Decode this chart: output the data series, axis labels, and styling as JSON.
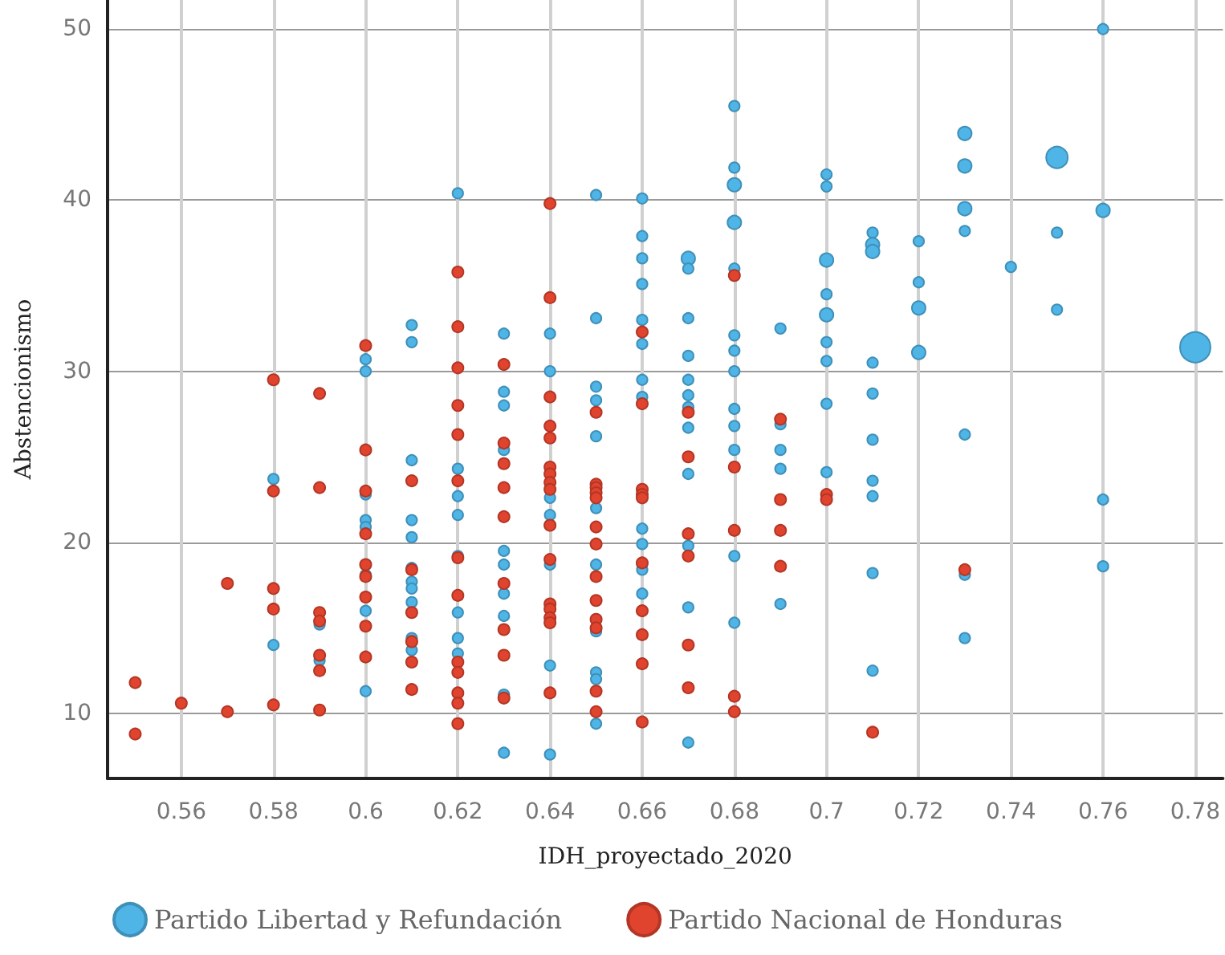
{
  "chart_data": {
    "type": "bubble",
    "xlabel": "IDH_proyectado_2020",
    "ylabel": "Abstencionismo",
    "xlim": [
      0.544,
      0.786
    ],
    "xticks": [
      0.56,
      0.58,
      0.6,
      0.62,
      0.64,
      0.66,
      0.68,
      0.7,
      0.72,
      0.74,
      0.76,
      0.78
    ],
    "ylim": [
      6.2,
      51.7
    ],
    "yticks": [
      10,
      20,
      30,
      40,
      50
    ],
    "grid": true,
    "legend": "bottom",
    "marker": "circle",
    "series": [
      {
        "name": "Partido Libertad y Refundación",
        "color": "#4fb4e6",
        "x": [
          0.58,
          0.58,
          0.59,
          0.59,
          0.6,
          0.6,
          0.6,
          0.6,
          0.6,
          0.6,
          0.6,
          0.6,
          0.61,
          0.61,
          0.61,
          0.61,
          0.61,
          0.61,
          0.61,
          0.61,
          0.61,
          0.61,
          0.61,
          0.62,
          0.62,
          0.62,
          0.62,
          0.62,
          0.62,
          0.62,
          0.62,
          0.63,
          0.63,
          0.63,
          0.63,
          0.63,
          0.63,
          0.63,
          0.63,
          0.63,
          0.63,
          0.64,
          0.64,
          0.64,
          0.64,
          0.64,
          0.64,
          0.64,
          0.64,
          0.65,
          0.65,
          0.65,
          0.65,
          0.65,
          0.65,
          0.65,
          0.65,
          0.65,
          0.65,
          0.65,
          0.66,
          0.66,
          0.66,
          0.66,
          0.66,
          0.66,
          0.66,
          0.66,
          0.66,
          0.66,
          0.66,
          0.66,
          0.67,
          0.67,
          0.67,
          0.67,
          0.67,
          0.67,
          0.67,
          0.67,
          0.67,
          0.67,
          0.67,
          0.67,
          0.68,
          0.68,
          0.68,
          0.68,
          0.68,
          0.68,
          0.68,
          0.68,
          0.68,
          0.68,
          0.68,
          0.68,
          0.68,
          0.69,
          0.69,
          0.69,
          0.69,
          0.69,
          0.7,
          0.7,
          0.7,
          0.7,
          0.7,
          0.7,
          0.7,
          0.7,
          0.7,
          0.71,
          0.71,
          0.71,
          0.71,
          0.71,
          0.71,
          0.71,
          0.71,
          0.71,
          0.71,
          0.72,
          0.72,
          0.72,
          0.72,
          0.73,
          0.73,
          0.73,
          0.73,
          0.73,
          0.73,
          0.73,
          0.74,
          0.75,
          0.75,
          0.75,
          0.76,
          0.76,
          0.76,
          0.76,
          0.78
        ],
        "values": [
          23.7,
          14.0,
          15.2,
          13.1,
          30.7,
          30.0,
          22.8,
          21.3,
          20.9,
          18.1,
          16.0,
          11.3,
          32.7,
          31.7,
          24.8,
          21.3,
          20.3,
          18.5,
          17.7,
          17.3,
          16.5,
          14.4,
          13.7,
          40.4,
          24.3,
          22.7,
          21.6,
          19.2,
          15.9,
          14.4,
          13.5,
          32.2,
          28.8,
          28.0,
          25.4,
          19.5,
          18.7,
          17.0,
          15.7,
          11.1,
          7.7,
          32.2,
          30.0,
          22.6,
          21.6,
          21.0,
          18.7,
          12.8,
          7.6,
          40.3,
          33.1,
          29.1,
          28.3,
          26.2,
          22.0,
          18.7,
          14.8,
          12.4,
          12.0,
          9.4,
          40.1,
          37.9,
          36.6,
          35.1,
          33.0,
          31.6,
          29.5,
          28.5,
          20.8,
          19.9,
          18.4,
          17.0,
          36.6,
          36.0,
          33.1,
          30.9,
          29.5,
          28.6,
          27.9,
          26.7,
          24.0,
          19.8,
          16.2,
          8.3,
          45.5,
          41.9,
          40.9,
          38.7,
          36.0,
          32.1,
          31.2,
          30.0,
          27.8,
          26.8,
          25.4,
          19.2,
          15.3,
          32.5,
          26.9,
          25.4,
          24.3,
          16.4,
          41.5,
          40.8,
          36.5,
          34.5,
          33.3,
          31.7,
          30.6,
          28.1,
          24.1,
          38.1,
          37.4,
          37.0,
          30.5,
          28.7,
          26.0,
          23.6,
          22.7,
          18.2,
          12.5,
          37.6,
          35.2,
          33.7,
          31.1,
          43.9,
          42.0,
          39.5,
          38.2,
          26.3,
          18.1,
          14.4,
          36.1,
          42.5,
          38.1,
          33.6,
          50.0,
          39.4,
          22.5,
          18.6,
          31.4
        ],
        "sizes": [
          0.12,
          0.12,
          0.12,
          0.12,
          0.12,
          0.12,
          0.12,
          0.12,
          0.12,
          0.12,
          0.12,
          0.12,
          0.12,
          0.12,
          0.12,
          0.12,
          0.12,
          0.12,
          0.12,
          0.12,
          0.12,
          0.12,
          0.12,
          0.12,
          0.12,
          0.12,
          0.12,
          0.12,
          0.12,
          0.12,
          0.12,
          0.12,
          0.12,
          0.12,
          0.12,
          0.12,
          0.12,
          0.12,
          0.12,
          0.12,
          0.12,
          0.12,
          0.12,
          0.12,
          0.12,
          0.12,
          0.12,
          0.12,
          0.12,
          0.12,
          0.12,
          0.12,
          0.12,
          0.12,
          0.12,
          0.12,
          0.12,
          0.12,
          0.12,
          0.12,
          0.12,
          0.12,
          0.12,
          0.12,
          0.12,
          0.12,
          0.12,
          0.12,
          0.12,
          0.12,
          0.12,
          0.12,
          0.2,
          0.12,
          0.12,
          0.12,
          0.12,
          0.12,
          0.12,
          0.12,
          0.12,
          0.12,
          0.12,
          0.12,
          0.12,
          0.12,
          0.2,
          0.2,
          0.12,
          0.12,
          0.12,
          0.12,
          0.12,
          0.12,
          0.12,
          0.12,
          0.12,
          0.12,
          0.12,
          0.12,
          0.12,
          0.12,
          0.12,
          0.12,
          0.2,
          0.12,
          0.2,
          0.12,
          0.12,
          0.12,
          0.12,
          0.12,
          0.2,
          0.2,
          0.12,
          0.12,
          0.12,
          0.12,
          0.12,
          0.12,
          0.12,
          0.12,
          0.12,
          0.2,
          0.2,
          0.2,
          0.2,
          0.2,
          0.12,
          0.12,
          0.12,
          0.12,
          0.12,
          0.5,
          0.12,
          0.12,
          0.12,
          0.2,
          0.12,
          0.12,
          1
        ]
      },
      {
        "name": "Partido Nacional de Honduras",
        "type": "scatter",
        "color": "#e0442e",
        "x": [
          0.55,
          0.55,
          0.56,
          0.57,
          0.57,
          0.58,
          0.58,
          0.58,
          0.58,
          0.58,
          0.59,
          0.59,
          0.59,
          0.59,
          0.59,
          0.59,
          0.59,
          0.6,
          0.6,
          0.6,
          0.6,
          0.6,
          0.6,
          0.6,
          0.6,
          0.6,
          0.61,
          0.61,
          0.61,
          0.61,
          0.61,
          0.61,
          0.62,
          0.62,
          0.62,
          0.62,
          0.62,
          0.62,
          0.62,
          0.62,
          0.62,
          0.62,
          0.62,
          0.62,
          0.62,
          0.63,
          0.63,
          0.63,
          0.63,
          0.63,
          0.63,
          0.63,
          0.63,
          0.63,
          0.64,
          0.64,
          0.64,
          0.64,
          0.64,
          0.64,
          0.64,
          0.64,
          0.64,
          0.64,
          0.64,
          0.64,
          0.64,
          0.64,
          0.64,
          0.64,
          0.65,
          0.65,
          0.65,
          0.65,
          0.65,
          0.65,
          0.65,
          0.65,
          0.65,
          0.65,
          0.65,
          0.65,
          0.65,
          0.66,
          0.66,
          0.66,
          0.66,
          0.66,
          0.66,
          0.66,
          0.66,
          0.66,
          0.66,
          0.67,
          0.67,
          0.67,
          0.67,
          0.67,
          0.67,
          0.68,
          0.68,
          0.68,
          0.68,
          0.68,
          0.69,
          0.69,
          0.69,
          0.69,
          0.7,
          0.7,
          0.71,
          0.73
        ],
        "values": [
          11.8,
          8.8,
          10.6,
          17.6,
          10.1,
          29.5,
          23.0,
          17.3,
          16.1,
          10.5,
          28.7,
          23.2,
          15.9,
          15.4,
          13.4,
          12.5,
          10.2,
          31.5,
          25.4,
          23.0,
          20.5,
          18.7,
          18.0,
          16.8,
          15.1,
          13.3,
          23.6,
          18.4,
          15.9,
          14.2,
          13.0,
          11.4,
          35.8,
          32.6,
          30.2,
          28.0,
          26.3,
          23.6,
          19.1,
          16.9,
          13.0,
          12.4,
          11.2,
          10.6,
          9.4,
          30.4,
          25.8,
          24.6,
          23.2,
          21.5,
          17.6,
          14.9,
          13.4,
          10.9,
          39.8,
          34.3,
          28.5,
          26.8,
          26.1,
          24.4,
          24.0,
          23.5,
          23.1,
          21.0,
          19.0,
          16.4,
          16.1,
          15.6,
          15.3,
          11.2,
          27.6,
          23.4,
          23.2,
          22.9,
          22.6,
          20.9,
          19.9,
          18.0,
          16.6,
          15.5,
          15.0,
          11.3,
          10.1,
          32.3,
          28.1,
          23.1,
          22.8,
          22.6,
          18.8,
          16.0,
          14.6,
          12.9,
          9.5,
          27.6,
          25.0,
          20.5,
          19.2,
          14.0,
          11.5,
          35.6,
          24.4,
          20.7,
          11.0,
          10.1,
          27.2,
          22.5,
          20.7,
          18.6,
          22.8,
          22.5,
          8.9,
          18.4
        ]
      }
    ]
  }
}
